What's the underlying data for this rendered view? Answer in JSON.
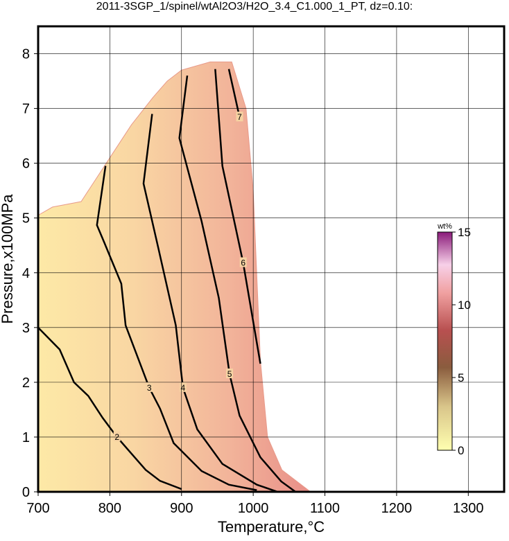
{
  "chart_data": {
    "type": "contour",
    "title": "2011-3SGP_1/spinel/wtAl2O3/H2O_3.4_C1.000_1_PT, dz=0.10:",
    "x_label": "Temperature,°C",
    "y_label": "Pressure,x100MPa",
    "xlim": [
      700,
      1350
    ],
    "ylim": [
      0,
      8.5
    ],
    "xticks": [
      700,
      800,
      900,
      1000,
      1100,
      1200,
      1300
    ],
    "yticks": [
      0,
      1,
      2,
      3,
      4,
      5,
      6,
      7,
      8
    ],
    "grid": true,
    "region": {
      "x": [
        700,
        700,
        720,
        760,
        790,
        810,
        830,
        860,
        880,
        900,
        940,
        970,
        990,
        1000,
        1010,
        1020,
        1040,
        1070,
        1080
      ],
      "y": [
        0,
        5.05,
        5.2,
        5.3,
        5.9,
        6.3,
        6.7,
        7.2,
        7.5,
        7.7,
        7.85,
        7.85,
        7.0,
        5.5,
        2.4,
        1.0,
        0.4,
        0.1,
        0
      ]
    },
    "contours": [
      {
        "level": 2,
        "x": [
          700,
          730,
          750,
          770,
          790,
          810,
          830,
          850,
          870,
          900
        ],
        "y": [
          3.0,
          2.6,
          2.0,
          1.75,
          1.35,
          1.0,
          0.7,
          0.4,
          0.2,
          0.05
        ]
      },
      {
        "level": 3,
        "x": [
          794,
          782,
          792,
          816,
          822,
          855,
          870,
          889,
          928,
          966,
          1005
        ],
        "y": [
          5.95,
          4.87,
          4.56,
          3.8,
          3.04,
          1.9,
          1.52,
          0.89,
          0.38,
          0.13,
          0.03
        ]
      },
      {
        "level": 4,
        "x": [
          859,
          847,
          868,
          892,
          902,
          922,
          957,
          1005,
          1034
        ],
        "y": [
          6.9,
          5.63,
          4.43,
          3.04,
          1.9,
          1.14,
          0.51,
          0.13,
          0
        ]
      },
      {
        "level": 5,
        "x": [
          908,
          897,
          928,
          952,
          967,
          981,
          1010,
          1039,
          1059
        ],
        "y": [
          7.6,
          6.46,
          4.94,
          3.54,
          2.15,
          1.39,
          0.63,
          0.19,
          0
        ]
      },
      {
        "level": 6,
        "x": [
          947,
          957,
          986,
          1010
        ],
        "y": [
          7.72,
          5.95,
          4.18,
          2.34
        ]
      },
      {
        "level": 7,
        "x": [
          966,
          981
        ],
        "y": [
          7.72,
          6.84
        ]
      }
    ],
    "colorbar": {
      "label": "wt%",
      "lim": [
        0,
        15
      ],
      "ticks": [
        0,
        5,
        10,
        15
      ]
    }
  }
}
